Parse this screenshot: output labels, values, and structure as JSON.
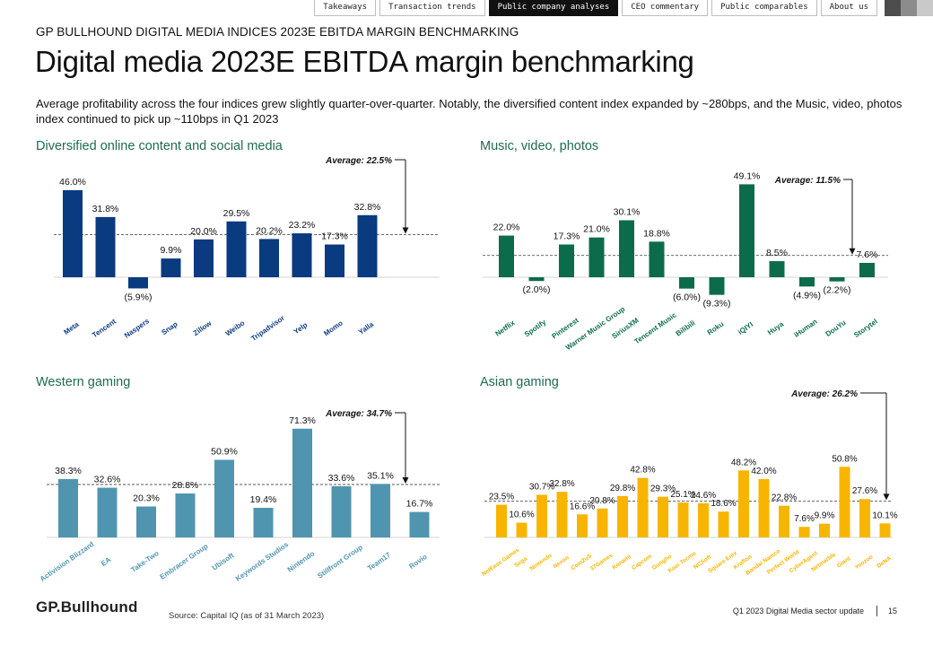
{
  "nav": {
    "tabs": [
      "Takeaways",
      "Transaction trends",
      "Public company analyses",
      "CEO commentary",
      "Public comparables",
      "About us"
    ],
    "active_index": 2
  },
  "header": {
    "kicker": "GP BULLHOUND DIGITAL MEDIA INDICES 2023E EBITDA MARGIN BENCHMARKING",
    "title": "Digital media 2023E EBITDA margin benchmarking",
    "intro": "Average profitability across the four indices grew slightly quarter-over-quarter. Notably, the diversified content index expanded by ~280bps, and the Music, video, photos index continued to pick up ~110bps in Q1 2023"
  },
  "colors": {
    "panel_title": "#1f6b4f",
    "diversified": "#0a3a80",
    "music": "#0c6b4a",
    "western": "#4f95b0",
    "asian": "#f7b500"
  },
  "chart_data": [
    {
      "id": "diversified",
      "type": "bar",
      "title": "Diversified online content and social media",
      "categories": [
        "Meta",
        "Tencent",
        "Naspers",
        "Snap",
        "Zillow",
        "Weibo",
        "Tripadvisor",
        "Yelp",
        "Momo",
        "Yalla"
      ],
      "values": [
        46.0,
        31.8,
        -5.9,
        9.9,
        20.0,
        29.5,
        20.2,
        23.2,
        17.3,
        32.8
      ],
      "labels": [
        "46.0%",
        "31.8%",
        "(5.9%)",
        "9.9%",
        "20.0%",
        "29.5%",
        "20.2%",
        "23.2%",
        "17.3%",
        "32.8%"
      ],
      "average": 22.5,
      "average_label": "Average: 22.5%",
      "ylim": [
        -10,
        50
      ]
    },
    {
      "id": "music",
      "type": "bar",
      "title": "Music, video, photos",
      "categories": [
        "Netflix",
        "Spotify",
        "Pinterest",
        "Warner Music Group",
        "SiriusXM",
        "Tencent Music",
        "Bilibili",
        "Roku",
        "iQIYI",
        "Huya",
        "iHuman",
        "DouYu",
        "Storytel"
      ],
      "values": [
        22.0,
        -2.0,
        17.3,
        21.0,
        30.1,
        18.8,
        -6.0,
        -9.3,
        49.1,
        8.5,
        -4.9,
        -2.2,
        7.6
      ],
      "labels": [
        "22.0%",
        "(2.0%)",
        "17.3%",
        "21.0%",
        "30.1%",
        "18.8%",
        "(6.0%)",
        "(9.3%)",
        "49.1%",
        "8.5%",
        "(4.9%)",
        "(2.2%)",
        "7.6%"
      ],
      "average": 11.5,
      "average_label": "Average: 11.5%",
      "ylim": [
        -10,
        50
      ]
    },
    {
      "id": "western",
      "type": "bar",
      "title": "Western gaming",
      "categories": [
        "Activision Blizzard",
        "EA",
        "Take-Two",
        "Embracer Group",
        "Ubisoft",
        "Keywords Studios",
        "Nintendo",
        "Stillfront Group",
        "Team17",
        "Rovio"
      ],
      "values": [
        38.3,
        32.6,
        20.3,
        28.8,
        50.9,
        19.4,
        71.3,
        33.6,
        35.1,
        16.7
      ],
      "labels": [
        "38.3%",
        "32.6%",
        "20.3%",
        "28.8%",
        "50.9%",
        "19.4%",
        "71.3%",
        "33.6%",
        "35.1%",
        "16.7%"
      ],
      "average": 34.7,
      "average_label": "Average: 34.7%",
      "ylim": [
        0,
        75
      ]
    },
    {
      "id": "asian",
      "type": "bar",
      "title": "Asian gaming",
      "categories": [
        "NetEase Games",
        "Sega",
        "Nintendo",
        "Nexon",
        "Com2uS",
        "37Games",
        "Konami",
        "Capcom",
        "Gungho",
        "Koei Tecmo",
        "NCSoft",
        "Square Enix",
        "Krafton",
        "Bandai Namco",
        "Perfect World",
        "CyberAgent",
        "Netmarble",
        "Giant",
        "Yoozoo",
        "DeNA"
      ],
      "values": [
        23.5,
        10.6,
        30.7,
        32.8,
        16.6,
        20.8,
        29.8,
        42.8,
        29.3,
        25.1,
        24.6,
        18.6,
        48.2,
        42.0,
        22.8,
        7.6,
        9.9,
        50.8,
        27.6,
        10.1
      ],
      "labels": [
        "23.5%",
        "10.6%",
        "30.7%",
        "32.8%",
        "16.6%",
        "20.8%",
        "29.8%",
        "42.8%",
        "29.3%",
        "25.1%",
        "24.6%",
        "18.6%",
        "48.2%",
        "42.0%",
        "22.8%",
        "7.6%",
        "9.9%",
        "50.8%",
        "27.6%",
        "10.1%"
      ],
      "average": 26.2,
      "average_label": "Average: 26.2%",
      "ylim": [
        0,
        55
      ]
    }
  ],
  "footer": {
    "logo": "GP.Bullhound",
    "source": "Source: Capital IQ (as of 31 March 2023)",
    "report": "Q1 2023 Digital Media sector update",
    "page": "15"
  }
}
